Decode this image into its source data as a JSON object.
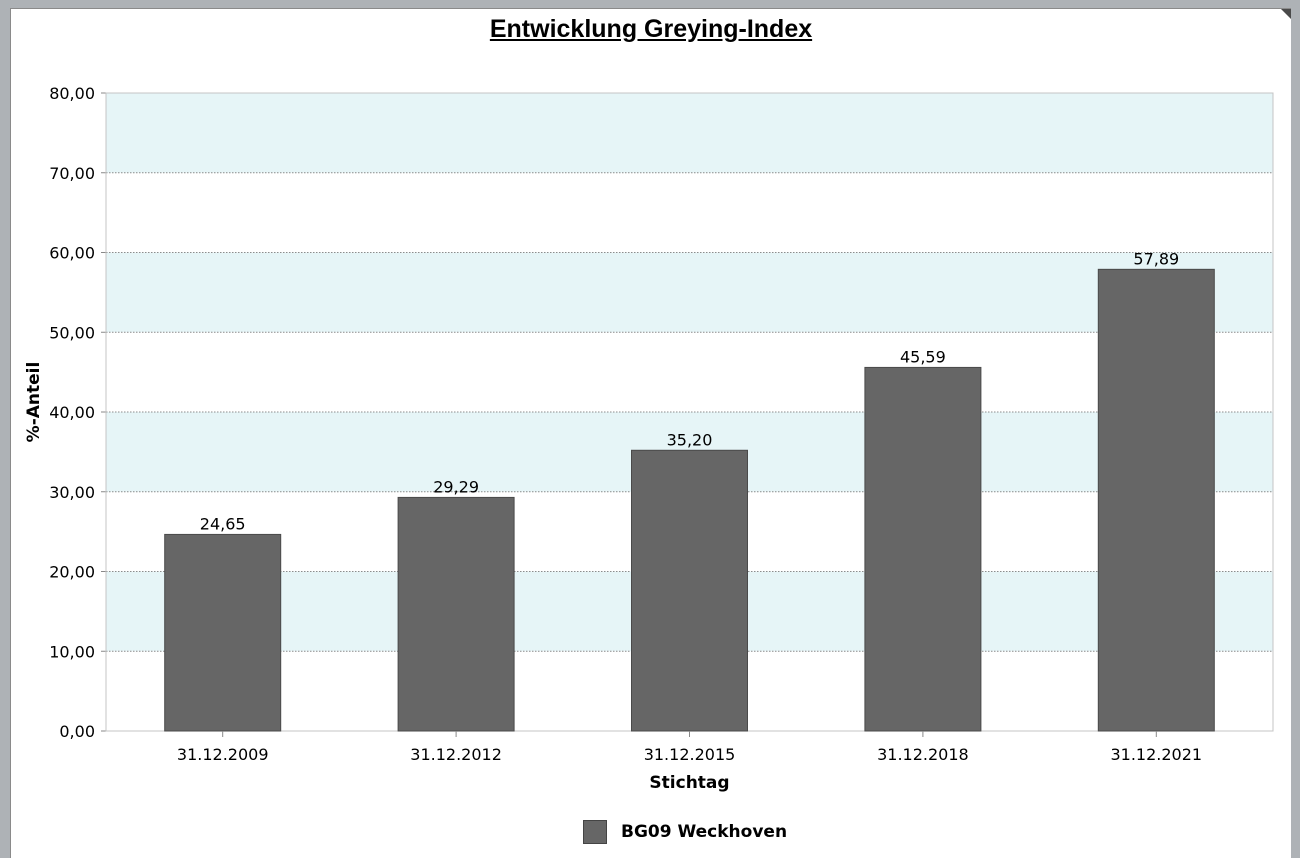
{
  "chart_data": {
    "type": "bar",
    "title": "Entwicklung Greying-Index",
    "xlabel": "Stichtag",
    "ylabel": "%-Anteil",
    "categories": [
      "31.12.2009",
      "31.12.2012",
      "31.12.2015",
      "31.12.2018",
      "31.12.2021"
    ],
    "series": [
      {
        "name": "BG09 Weckhoven",
        "values": [
          24.65,
          29.29,
          35.2,
          45.59,
          57.89
        ],
        "labels": [
          "24,65",
          "29,29",
          "35,20",
          "45,59",
          "57,89"
        ]
      }
    ],
    "ylim": [
      0,
      80
    ],
    "yticks": [
      "0,00",
      "10,00",
      "20,00",
      "30,00",
      "40,00",
      "50,00",
      "60,00",
      "70,00",
      "80,00"
    ],
    "grid": true,
    "legend": "bottom-center",
    "colors": {
      "bar": "#666666",
      "band": "#e6f5f7",
      "grid": "#8c8c8c"
    }
  }
}
